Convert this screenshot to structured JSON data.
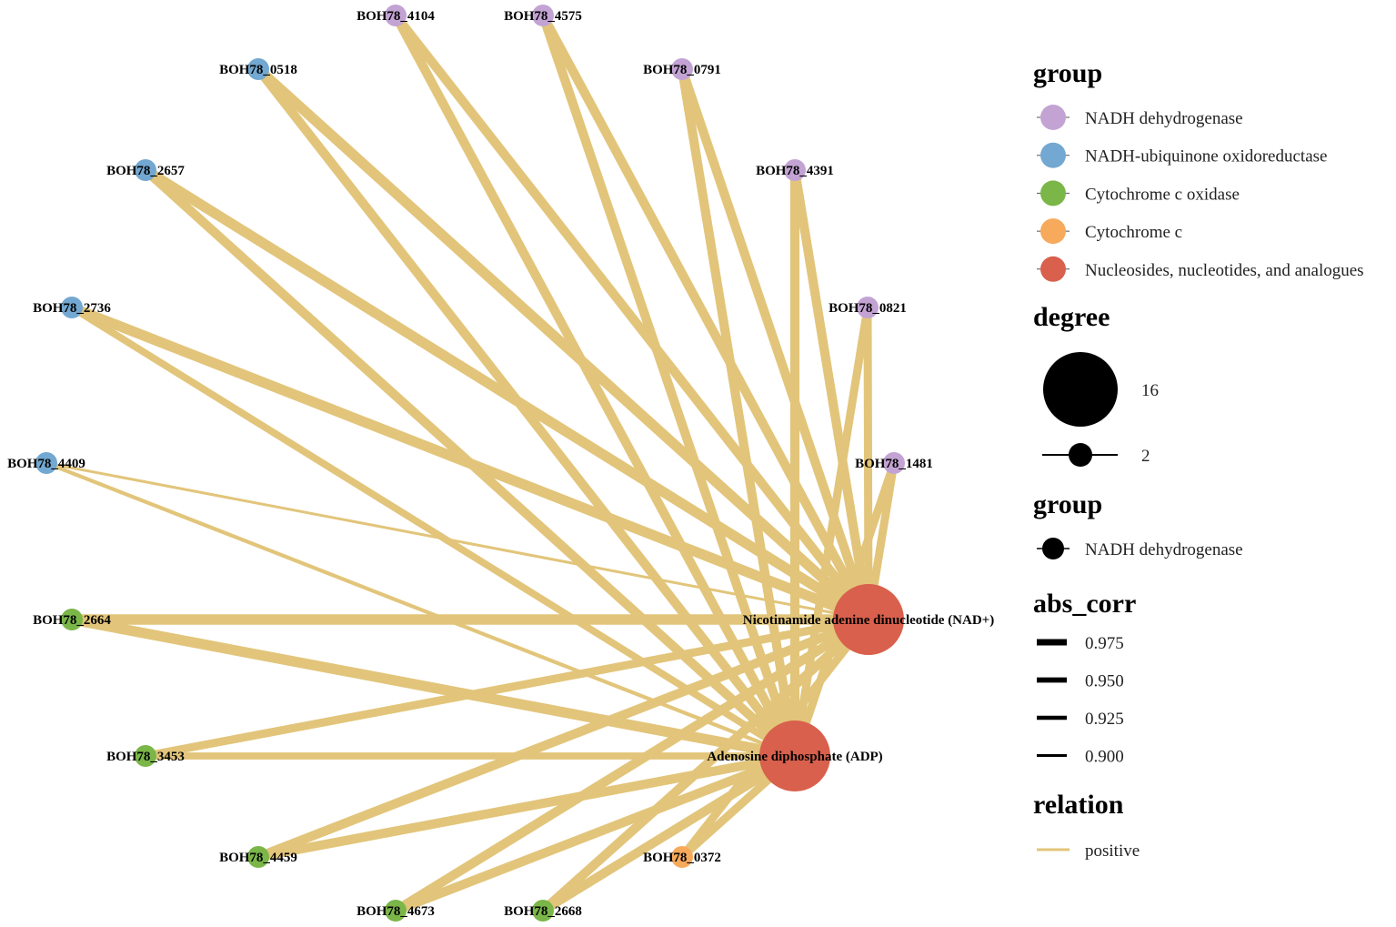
{
  "network": {
    "nodes": [
      {
        "id": "BOH78_4104",
        "label": "BOH78_4104",
        "group": 0,
        "color": "#c3a3d3"
      },
      {
        "id": "BOH78_4575",
        "label": "BOH78_4575",
        "group": 0,
        "color": "#c3a3d3"
      },
      {
        "id": "BOH78_0791",
        "label": "BOH78_0791",
        "group": 0,
        "color": "#c3a3d3"
      },
      {
        "id": "BOH78_4391",
        "label": "BOH78_4391",
        "group": 0,
        "color": "#c3a3d3"
      },
      {
        "id": "BOH78_0821",
        "label": "BOH78_0821",
        "group": 0,
        "color": "#c3a3d3"
      },
      {
        "id": "BOH78_1481",
        "label": "BOH78_1481",
        "group": 0,
        "color": "#c3a3d3"
      },
      {
        "id": "BOH78_0518",
        "label": "BOH78_0518",
        "group": 1,
        "color": "#72a8d1"
      },
      {
        "id": "BOH78_2657",
        "label": "BOH78_2657",
        "group": 1,
        "color": "#72a8d1"
      },
      {
        "id": "BOH78_2736",
        "label": "BOH78_2736",
        "group": 1,
        "color": "#72a8d1"
      },
      {
        "id": "BOH78_4409",
        "label": "BOH78_4409",
        "group": 1,
        "color": "#72a8d1"
      },
      {
        "id": "BOH78_2664",
        "label": "BOH78_2664",
        "group": 2,
        "color": "#7ab648"
      },
      {
        "id": "BOH78_3453",
        "label": "BOH78_3453",
        "group": 2,
        "color": "#7ab648"
      },
      {
        "id": "BOH78_4459",
        "label": "BOH78_4459",
        "group": 2,
        "color": "#7ab648"
      },
      {
        "id": "BOH78_4673",
        "label": "BOH78_4673",
        "group": 2,
        "color": "#7ab648"
      },
      {
        "id": "BOH78_2668",
        "label": "BOH78_2668",
        "group": 2,
        "color": "#7ab648"
      },
      {
        "id": "BOH78_0372",
        "label": "BOH78_0372",
        "group": 3,
        "color": "#f7a95c"
      },
      {
        "id": "NAD",
        "label": "Nicotinamide adenine dinucleotide (NAD+)",
        "group": 4,
        "color": "#d9604c"
      },
      {
        "id": "ADP",
        "label": "Adenosine diphosphate (ADP)",
        "group": 4,
        "color": "#d9604c"
      }
    ],
    "edges": [
      {
        "source": "BOH78_4104",
        "target": "NAD",
        "abs_corr": 0.96
      },
      {
        "source": "BOH78_4104",
        "target": "ADP",
        "abs_corr": 0.96
      },
      {
        "source": "BOH78_4575",
        "target": "NAD",
        "abs_corr": 0.96
      },
      {
        "source": "BOH78_4575",
        "target": "ADP",
        "abs_corr": 0.96
      },
      {
        "source": "BOH78_0791",
        "target": "NAD",
        "abs_corr": 0.96
      },
      {
        "source": "BOH78_0791",
        "target": "ADP",
        "abs_corr": 0.96
      },
      {
        "source": "BOH78_4391",
        "target": "NAD",
        "abs_corr": 0.96
      },
      {
        "source": "BOH78_4391",
        "target": "ADP",
        "abs_corr": 0.96
      },
      {
        "source": "BOH78_0821",
        "target": "NAD",
        "abs_corr": 0.95
      },
      {
        "source": "BOH78_0821",
        "target": "ADP",
        "abs_corr": 0.95
      },
      {
        "source": "BOH78_1481",
        "target": "NAD",
        "abs_corr": 0.95
      },
      {
        "source": "BOH78_1481",
        "target": "ADP",
        "abs_corr": 0.95
      },
      {
        "source": "BOH78_0518",
        "target": "NAD",
        "abs_corr": 0.97
      },
      {
        "source": "BOH78_0518",
        "target": "ADP",
        "abs_corr": 0.96
      },
      {
        "source": "BOH78_2657",
        "target": "NAD",
        "abs_corr": 0.97
      },
      {
        "source": "BOH78_2657",
        "target": "ADP",
        "abs_corr": 0.96
      },
      {
        "source": "BOH78_2736",
        "target": "NAD",
        "abs_corr": 0.97
      },
      {
        "source": "BOH78_2736",
        "target": "ADP",
        "abs_corr": 0.94
      },
      {
        "source": "BOH78_4409",
        "target": "NAD",
        "abs_corr": 0.9
      },
      {
        "source": "BOH78_4409",
        "target": "ADP",
        "abs_corr": 0.91
      },
      {
        "source": "BOH78_2664",
        "target": "NAD",
        "abs_corr": 0.97
      },
      {
        "source": "BOH78_2664",
        "target": "ADP",
        "abs_corr": 0.97
      },
      {
        "source": "BOH78_3453",
        "target": "NAD",
        "abs_corr": 0.95
      },
      {
        "source": "BOH78_3453",
        "target": "ADP",
        "abs_corr": 0.94
      },
      {
        "source": "BOH78_4459",
        "target": "NAD",
        "abs_corr": 0.96
      },
      {
        "source": "BOH78_4459",
        "target": "ADP",
        "abs_corr": 0.96
      },
      {
        "source": "BOH78_4673",
        "target": "NAD",
        "abs_corr": 0.96
      },
      {
        "source": "BOH78_4673",
        "target": "ADP",
        "abs_corr": 0.96
      },
      {
        "source": "BOH78_2668",
        "target": "NAD",
        "abs_corr": 0.96
      },
      {
        "source": "BOH78_2668",
        "target": "ADP",
        "abs_corr": 0.96
      },
      {
        "source": "BOH78_0372",
        "target": "NAD",
        "abs_corr": 0.95
      },
      {
        "source": "BOH78_0372",
        "target": "ADP",
        "abs_corr": 0.95
      }
    ],
    "edge_color": "#e2c57a"
  },
  "legend": {
    "group_title": "group",
    "groups": [
      {
        "label": "NADH dehydrogenase",
        "color": "#c3a3d3"
      },
      {
        "label": "NADH-ubiquinone oxidoreductase",
        "color": "#72a8d1"
      },
      {
        "label": "Cytochrome c oxidase",
        "color": "#7ab648"
      },
      {
        "label": "Cytochrome c",
        "color": "#f7a95c"
      },
      {
        "label": "Nucleosides, nucleotides, and analogues",
        "color": "#d9604c"
      }
    ],
    "degree_title": "degree",
    "degree_items": [
      {
        "label": "16",
        "value": 16
      },
      {
        "label": "2",
        "value": 2
      }
    ],
    "group2_title": "group",
    "group2_items": [
      {
        "label": "NADH dehydrogenase",
        "color": "#000000"
      }
    ],
    "abs_corr_title": "abs_corr",
    "abs_corr_items": [
      {
        "label": "0.975",
        "value": 0.975
      },
      {
        "label": "0.950",
        "value": 0.95
      },
      {
        "label": "0.925",
        "value": 0.925
      },
      {
        "label": "0.900",
        "value": 0.9
      }
    ],
    "relation_title": "relation",
    "relation_items": [
      {
        "label": "positive",
        "color": "#e2c57a"
      }
    ]
  }
}
